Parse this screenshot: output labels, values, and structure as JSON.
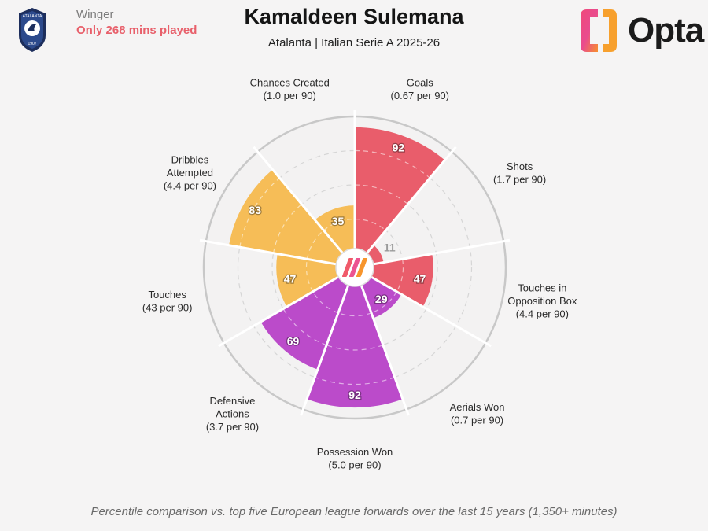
{
  "header": {
    "position": "Winger",
    "minutes_note": "Only 268 mins played",
    "player_name": "Kamaldeen Sulemana",
    "subtitle": "Atalanta | Italian Serie A 2025-26",
    "club_badge_text": "ATALANTA",
    "club_badge_year": "1907",
    "brand_logo_text": "Opta"
  },
  "chart_data": {
    "type": "polar-bar",
    "title": "Kamaldeen Sulemana",
    "subtitle": "Atalanta | Italian Serie A 2025-26",
    "rlim": [
      0,
      100
    ],
    "rings": [
      25,
      50,
      75,
      100
    ],
    "categories": [
      {
        "name": "Goals",
        "per90": "(0.67 per 90)",
        "percentile": 92,
        "group": "attacking"
      },
      {
        "name": "Shots",
        "per90": "(1.7 per 90)",
        "percentile": 11,
        "group": "attacking"
      },
      {
        "name": "Touches in Opposition Box",
        "label_lines": [
          "Touches in",
          "Opposition Box"
        ],
        "per90": "(4.4 per 90)",
        "percentile": 47,
        "group": "attacking"
      },
      {
        "name": "Aerials Won",
        "per90": "(0.7 per 90)",
        "percentile": 29,
        "group": "defending"
      },
      {
        "name": "Possession Won",
        "per90": "(5.0 per 90)",
        "percentile": 92,
        "group": "defending"
      },
      {
        "name": "Defensive Actions",
        "label_lines": [
          "Defensive",
          "Actions"
        ],
        "per90": "(3.7 per 90)",
        "percentile": 69,
        "group": "defending"
      },
      {
        "name": "Touches",
        "per90": "(43 per 90)",
        "percentile": 47,
        "group": "possession"
      },
      {
        "name": "Dribbles Attempted",
        "label_lines": [
          "Dribbles",
          "Attempted"
        ],
        "per90": "(4.4 per 90)",
        "percentile": 83,
        "group": "possession"
      },
      {
        "name": "Chances Created",
        "per90": "(1.0 per 90)",
        "percentile": 35,
        "group": "possession"
      }
    ],
    "group_colors": {
      "attacking": "#e8505f",
      "defending": "#b63dc7",
      "possession": "#f6b84a"
    }
  },
  "footnote": "Percentile comparison vs. top five European league forwards over the last 15 years (1,350+ minutes)"
}
